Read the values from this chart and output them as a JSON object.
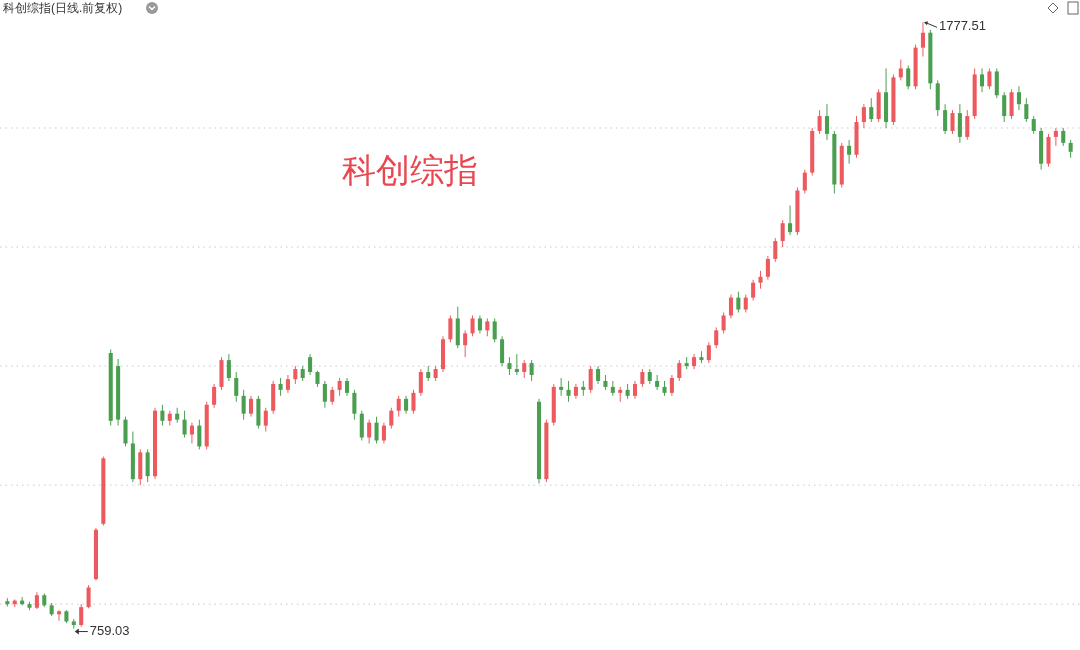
{
  "chart_data": {
    "type": "candlestick",
    "title": "科创综指(日线.前复权)",
    "annotations": [
      "科创综指",
      "1777.51",
      "759.03"
    ],
    "ylim": [
      723,
      1815
    ],
    "yticks": [
      {
        "value": 800,
        "label": null
      },
      {
        "value": 1000,
        "label": null
      },
      {
        "value": 1200,
        "label": null
      },
      {
        "value": 1400,
        "label": null
      },
      {
        "value": 1600,
        "label": null
      }
    ],
    "grid": "y",
    "categories": [
      null,
      null,
      null,
      null,
      null,
      null,
      null,
      null,
      null,
      null,
      null,
      null,
      null,
      null,
      null,
      null,
      null,
      null,
      null,
      null,
      null,
      null,
      null,
      null,
      null,
      null,
      null,
      null,
      null,
      null,
      null,
      null,
      null,
      null,
      null,
      null,
      null,
      null,
      null,
      null,
      null,
      null,
      null,
      null,
      null,
      null,
      null,
      null,
      null,
      null,
      null,
      null,
      null,
      null,
      null,
      null,
      null,
      null,
      null,
      null,
      null,
      null,
      null,
      null,
      null,
      null,
      null,
      null,
      null,
      null,
      null,
      null,
      null,
      null,
      null,
      null,
      null,
      null,
      null,
      null,
      null,
      null,
      null,
      null,
      null,
      null,
      null,
      null,
      null,
      null,
      null,
      null,
      null,
      null,
      null,
      null,
      null,
      null,
      null,
      null,
      null,
      null,
      null,
      null,
      null,
      null,
      null,
      null,
      null,
      null,
      null,
      null,
      null,
      null,
      null,
      null,
      null,
      null,
      null,
      null,
      null,
      null,
      null,
      null,
      null,
      null,
      null,
      null,
      null,
      null,
      null,
      null,
      null,
      null,
      null,
      null,
      null,
      null,
      null,
      null,
      null,
      null,
      null,
      null,
      null
    ],
    "ohlc": [
      [
        805,
        810,
        796,
        800
      ],
      [
        800,
        808,
        795,
        806
      ],
      [
        806,
        812,
        798,
        800
      ],
      [
        800,
        804,
        790,
        794
      ],
      [
        794,
        820,
        792,
        815
      ],
      [
        815,
        818,
        795,
        798
      ],
      [
        798,
        802,
        780,
        783
      ],
      [
        783,
        790,
        772,
        788
      ],
      [
        788,
        790,
        768,
        771
      ],
      [
        771,
        775,
        759.03,
        765
      ],
      [
        765,
        800,
        762,
        795
      ],
      [
        795,
        832,
        793,
        828
      ],
      [
        842,
        928,
        840,
        925
      ],
      [
        935,
        1048,
        932,
        1045
      ],
      [
        1222,
        1228,
        1100,
        1108
      ],
      [
        1200,
        1212,
        1100,
        1110
      ],
      [
        1110,
        1115,
        1065,
        1070
      ],
      [
        1070,
        1090,
        1005,
        1010
      ],
      [
        1010,
        1060,
        1000,
        1055
      ],
      [
        1055,
        1060,
        1005,
        1015
      ],
      [
        1015,
        1130,
        1010,
        1125
      ],
      [
        1125,
        1135,
        1100,
        1108
      ],
      [
        1108,
        1125,
        1100,
        1120
      ],
      [
        1120,
        1130,
        1105,
        1110
      ],
      [
        1110,
        1125,
        1080,
        1085
      ],
      [
        1085,
        1105,
        1070,
        1100
      ],
      [
        1100,
        1110,
        1060,
        1065
      ],
      [
        1065,
        1140,
        1060,
        1135
      ],
      [
        1135,
        1170,
        1130,
        1165
      ],
      [
        1165,
        1215,
        1160,
        1210
      ],
      [
        1210,
        1220,
        1175,
        1180
      ],
      [
        1180,
        1190,
        1140,
        1150
      ],
      [
        1150,
        1160,
        1110,
        1120
      ],
      [
        1120,
        1150,
        1115,
        1145
      ],
      [
        1145,
        1150,
        1095,
        1100
      ],
      [
        1100,
        1130,
        1090,
        1125
      ],
      [
        1125,
        1175,
        1120,
        1170
      ],
      [
        1170,
        1180,
        1150,
        1160
      ],
      [
        1160,
        1185,
        1155,
        1178
      ],
      [
        1178,
        1200,
        1170,
        1195
      ],
      [
        1195,
        1200,
        1175,
        1180
      ],
      [
        1215,
        1220,
        1185,
        1190
      ],
      [
        1190,
        1192,
        1165,
        1170
      ],
      [
        1170,
        1175,
        1130,
        1140
      ],
      [
        1140,
        1165,
        1135,
        1160
      ],
      [
        1160,
        1180,
        1150,
        1175
      ],
      [
        1175,
        1180,
        1150,
        1155
      ],
      [
        1155,
        1160,
        1110,
        1120
      ],
      [
        1120,
        1125,
        1075,
        1080
      ],
      [
        1080,
        1110,
        1070,
        1105
      ],
      [
        1105,
        1115,
        1070,
        1075
      ],
      [
        1075,
        1105,
        1070,
        1100
      ],
      [
        1100,
        1130,
        1095,
        1125
      ],
      [
        1125,
        1150,
        1115,
        1145
      ],
      [
        1145,
        1150,
        1120,
        1125
      ],
      [
        1125,
        1160,
        1120,
        1155
      ],
      [
        1155,
        1195,
        1150,
        1190
      ],
      [
        1190,
        1200,
        1175,
        1180
      ],
      [
        1180,
        1200,
        1175,
        1195
      ],
      [
        1195,
        1250,
        1190,
        1245
      ],
      [
        1245,
        1285,
        1240,
        1280
      ],
      [
        1280,
        1300,
        1230,
        1235
      ],
      [
        1235,
        1260,
        1215,
        1255
      ],
      [
        1255,
        1285,
        1250,
        1280
      ],
      [
        1280,
        1285,
        1255,
        1260
      ],
      [
        1260,
        1280,
        1250,
        1275
      ],
      [
        1275,
        1280,
        1240,
        1245
      ],
      [
        1245,
        1250,
        1200,
        1205
      ],
      [
        1205,
        1215,
        1185,
        1195
      ],
      [
        1195,
        1220,
        1185,
        1190
      ],
      [
        1190,
        1210,
        1180,
        1205
      ],
      [
        1205,
        1210,
        1175,
        1185
      ],
      [
        1140,
        1145,
        1003,
        1010
      ],
      [
        1010,
        1110,
        1005,
        1105
      ],
      [
        1105,
        1170,
        1100,
        1165
      ],
      [
        1165,
        1180,
        1150,
        1160
      ],
      [
        1160,
        1175,
        1140,
        1150
      ],
      [
        1150,
        1170,
        1145,
        1165
      ],
      [
        1165,
        1175,
        1150,
        1160
      ],
      [
        1160,
        1200,
        1155,
        1195
      ],
      [
        1195,
        1200,
        1170,
        1175
      ],
      [
        1175,
        1185,
        1160,
        1165
      ],
      [
        1165,
        1175,
        1150,
        1155
      ],
      [
        1155,
        1165,
        1140,
        1160
      ],
      [
        1160,
        1170,
        1145,
        1150
      ],
      [
        1150,
        1175,
        1145,
        1170
      ],
      [
        1170,
        1195,
        1165,
        1190
      ],
      [
        1190,
        1195,
        1170,
        1175
      ],
      [
        1175,
        1185,
        1160,
        1165
      ],
      [
        1165,
        1175,
        1150,
        1155
      ],
      [
        1155,
        1185,
        1150,
        1180
      ],
      [
        1180,
        1210,
        1175,
        1205
      ],
      [
        1205,
        1215,
        1195,
        1200
      ],
      [
        1200,
        1220,
        1195,
        1215
      ],
      [
        1215,
        1225,
        1205,
        1210
      ],
      [
        1210,
        1240,
        1205,
        1235
      ],
      [
        1235,
        1265,
        1230,
        1260
      ],
      [
        1260,
        1290,
        1255,
        1285
      ],
      [
        1285,
        1320,
        1280,
        1315
      ],
      [
        1315,
        1325,
        1290,
        1295
      ],
      [
        1295,
        1320,
        1290,
        1315
      ],
      [
        1315,
        1345,
        1310,
        1340
      ],
      [
        1340,
        1360,
        1330,
        1350
      ],
      [
        1350,
        1385,
        1345,
        1380
      ],
      [
        1380,
        1415,
        1375,
        1410
      ],
      [
        1410,
        1445,
        1400,
        1440
      ],
      [
        1440,
        1470,
        1420,
        1425
      ],
      [
        1425,
        1500,
        1420,
        1495
      ],
      [
        1495,
        1530,
        1490,
        1525
      ],
      [
        1525,
        1600,
        1520,
        1595
      ],
      [
        1595,
        1630,
        1590,
        1620
      ],
      [
        1620,
        1640,
        1580,
        1590
      ],
      [
        1590,
        1595,
        1490,
        1505
      ],
      [
        1505,
        1575,
        1500,
        1570
      ],
      [
        1570,
        1580,
        1540,
        1555
      ],
      [
        1555,
        1620,
        1550,
        1610
      ],
      [
        1610,
        1640,
        1600,
        1635
      ],
      [
        1635,
        1650,
        1610,
        1615
      ],
      [
        1615,
        1665,
        1610,
        1660
      ],
      [
        1660,
        1700,
        1600,
        1610
      ],
      [
        1610,
        1690,
        1605,
        1685
      ],
      [
        1685,
        1715,
        1680,
        1700
      ],
      [
        1700,
        1705,
        1665,
        1670
      ],
      [
        1670,
        1740,
        1665,
        1735
      ],
      [
        1735,
        1777.51,
        1720,
        1760
      ],
      [
        1760,
        1765,
        1665,
        1675
      ],
      [
        1675,
        1680,
        1620,
        1630
      ],
      [
        1630,
        1640,
        1590,
        1595
      ],
      [
        1595,
        1630,
        1590,
        1625
      ],
      [
        1625,
        1640,
        1575,
        1585
      ],
      [
        1585,
        1630,
        1580,
        1620
      ],
      [
        1620,
        1700,
        1615,
        1690
      ],
      [
        1690,
        1700,
        1660,
        1670
      ],
      [
        1670,
        1700,
        1665,
        1695
      ],
      [
        1695,
        1700,
        1650,
        1655
      ],
      [
        1655,
        1660,
        1610,
        1620
      ],
      [
        1620,
        1665,
        1615,
        1660
      ],
      [
        1660,
        1670,
        1630,
        1640
      ],
      [
        1640,
        1650,
        1610,
        1615
      ],
      [
        1615,
        1620,
        1590,
        1595
      ],
      [
        1595,
        1600,
        1530,
        1540
      ],
      [
        1540,
        1590,
        1535,
        1585
      ],
      [
        1585,
        1600,
        1570,
        1595
      ],
      [
        1595,
        1600,
        1570,
        1575
      ],
      [
        1575,
        1580,
        1550,
        1560
      ]
    ]
  }
}
